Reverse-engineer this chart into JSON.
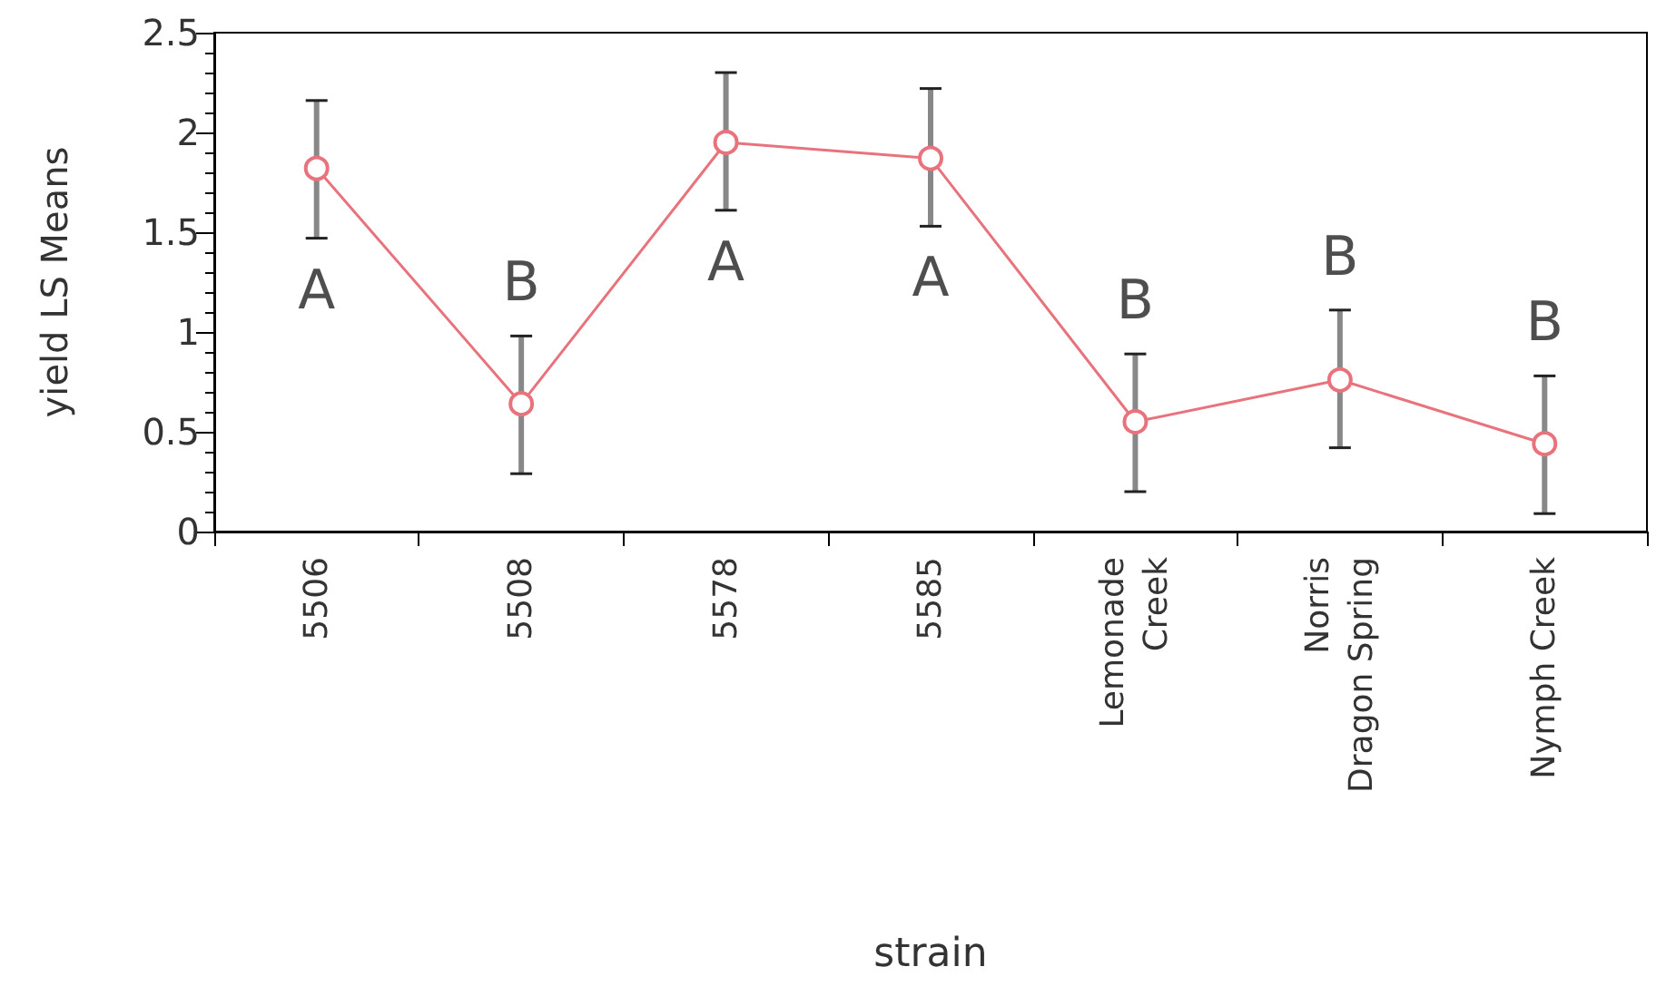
{
  "chart_data": {
    "type": "line",
    "xlabel": "strain",
    "ylabel": "yield LS Means",
    "categories": [
      "5506",
      "5508",
      "5578",
      "5585",
      "Lemonade\nCreek",
      "Norris\nDragon Spring",
      "Nymph Creek"
    ],
    "series": [
      {
        "color": "#e8737d",
        "values": [
          1.82,
          0.64,
          1.95,
          1.87,
          0.55,
          0.76,
          0.44
        ],
        "errors": [
          [
            1.47,
            2.16
          ],
          [
            0.29,
            0.98
          ],
          [
            1.61,
            2.3
          ],
          [
            1.53,
            2.22
          ],
          [
            0.2,
            0.89
          ],
          [
            0.42,
            1.11
          ],
          [
            0.09,
            0.78
          ]
        ]
      }
    ],
    "ylim": [
      0,
      2.5
    ],
    "yticks": [
      0,
      0.5,
      1,
      1.5,
      2,
      2.5
    ],
    "grid": false,
    "marker": "circle",
    "line_style": "solid",
    "annotations": [
      "A",
      "B",
      "A",
      "A",
      "B",
      "B",
      "B"
    ]
  }
}
